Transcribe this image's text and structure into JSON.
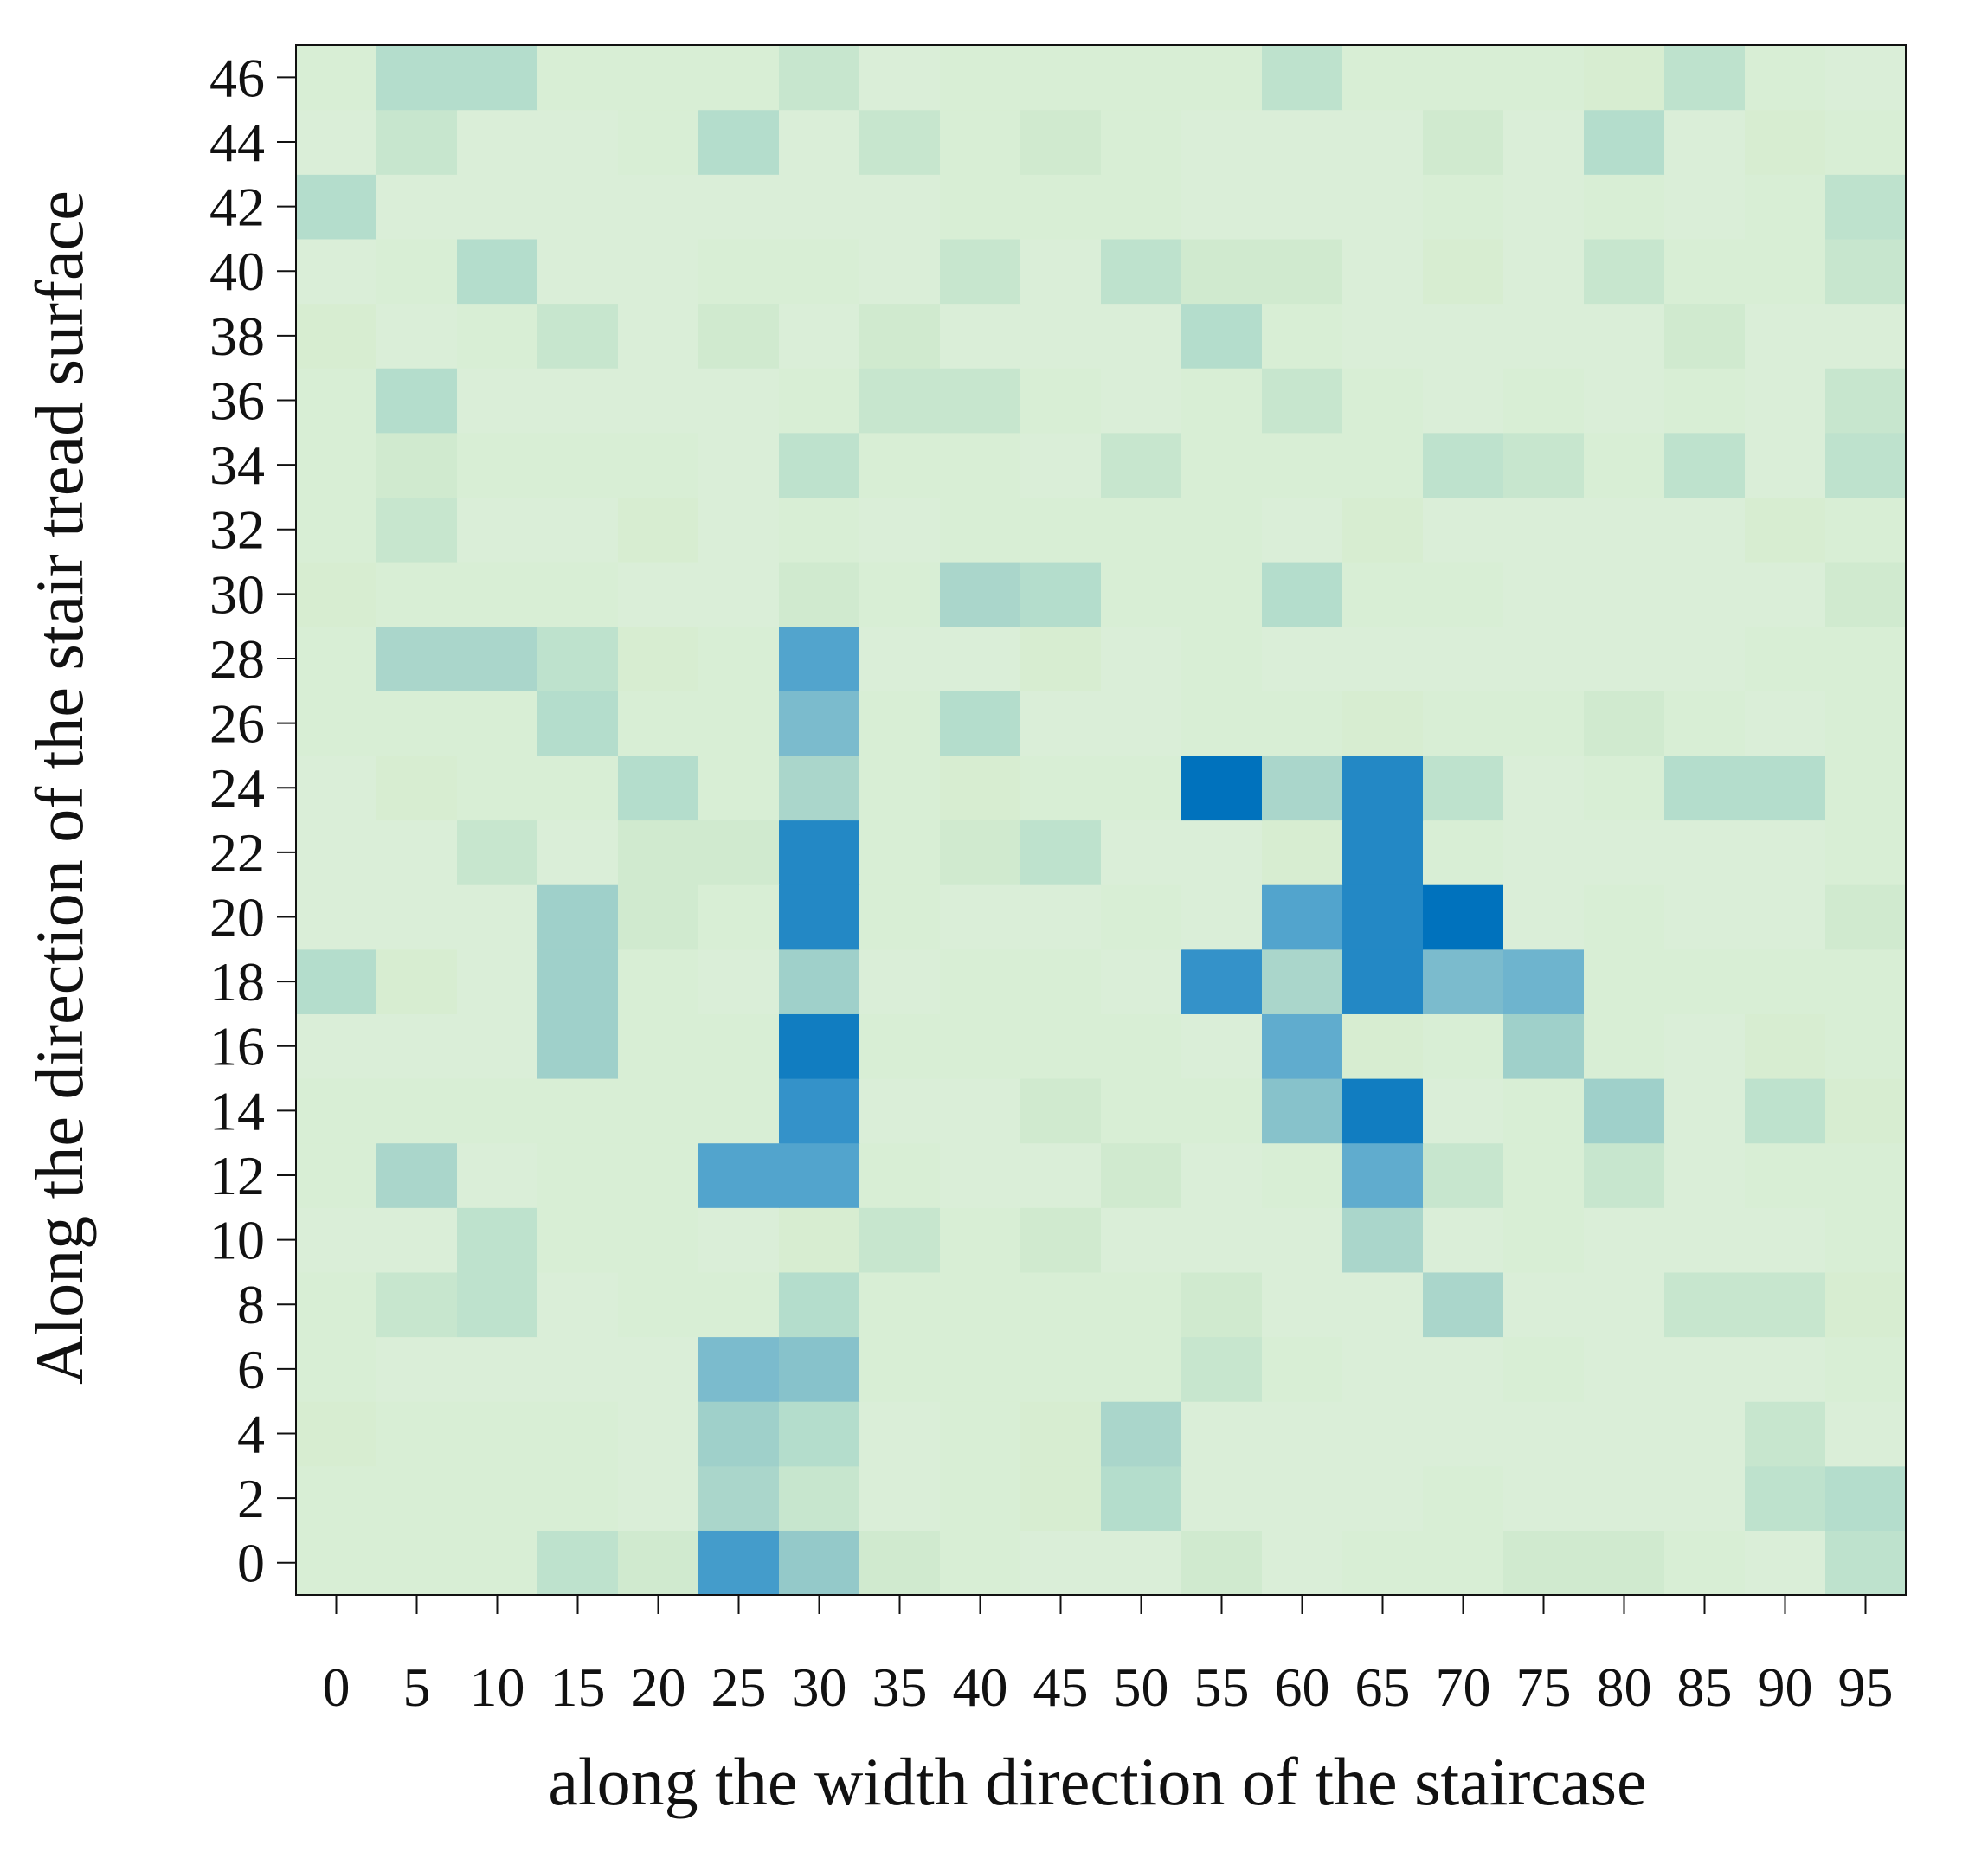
{
  "chart_data": {
    "type": "heatmap",
    "title": "",
    "xlabel": "along the width direction of the staircase",
    "ylabel": "Along the direction of the stair tread surface",
    "x": [
      0,
      5,
      10,
      15,
      20,
      25,
      30,
      35,
      40,
      45,
      50,
      55,
      60,
      65,
      70,
      75,
      80,
      85,
      90,
      95
    ],
    "y": [
      0,
      2,
      4,
      6,
      8,
      10,
      12,
      14,
      16,
      18,
      20,
      22,
      24,
      26,
      28,
      30,
      32,
      34,
      36,
      38,
      40,
      42,
      44,
      46
    ],
    "x_ticks": [
      "0",
      "5",
      "10",
      "15",
      "20",
      "25",
      "30",
      "35",
      "40",
      "45",
      "50",
      "55",
      "60",
      "65",
      "70",
      "75",
      "80",
      "85",
      "90",
      "95"
    ],
    "y_ticks": [
      "0",
      "2",
      "4",
      "6",
      "8",
      "10",
      "12",
      "14",
      "16",
      "18",
      "20",
      "22",
      "24",
      "26",
      "28",
      "30",
      "32",
      "34",
      "36",
      "38",
      "40",
      "42",
      "44",
      "46"
    ],
    "value_range": [
      0,
      1
    ],
    "colormap": [
      "#dcefdc",
      "#d6edd0",
      "#b8dfcc",
      "#94c9c9",
      "#6ab2cf",
      "#3a96ca",
      "#0072bd"
    ],
    "grid": false,
    "values": [
      [
        0.1,
        0.1,
        0.1,
        0.3,
        0.2,
        0.8,
        0.5,
        0.2,
        0.1,
        0.05,
        0.05,
        0.2,
        0.05,
        0.1,
        0.1,
        0.2,
        0.2,
        0.1,
        0.05,
        0.3
      ],
      [
        0.1,
        0.1,
        0.1,
        0.1,
        0.05,
        0.4,
        0.25,
        0.05,
        0.1,
        0.15,
        0.35,
        0.05,
        0.05,
        0.05,
        0.1,
        0.05,
        0.05,
        0.05,
        0.3,
        0.35
      ],
      [
        0.15,
        0.1,
        0.1,
        0.1,
        0.05,
        0.45,
        0.35,
        0.05,
        0.1,
        0.15,
        0.4,
        0.05,
        0.05,
        0.05,
        0.05,
        0.05,
        0.05,
        0.05,
        0.25,
        0.05
      ],
      [
        0.1,
        0.05,
        0.05,
        0.05,
        0.05,
        0.6,
        0.55,
        0.1,
        0.1,
        0.1,
        0.1,
        0.25,
        0.1,
        0.05,
        0.05,
        0.1,
        0.05,
        0.05,
        0.05,
        0.1
      ],
      [
        0.1,
        0.25,
        0.3,
        0.05,
        0.1,
        0.1,
        0.35,
        0.1,
        0.1,
        0.1,
        0.1,
        0.2,
        0.05,
        0.05,
        0.4,
        0.05,
        0.05,
        0.25,
        0.25,
        0.15
      ],
      [
        0.05,
        0.05,
        0.3,
        0.1,
        0.1,
        0.05,
        0.15,
        0.25,
        0.1,
        0.2,
        0.05,
        0.05,
        0.05,
        0.4,
        0.05,
        0.1,
        0.05,
        0.05,
        0.05,
        0.1
      ],
      [
        0.1,
        0.4,
        0.05,
        0.1,
        0.1,
        0.75,
        0.75,
        0.1,
        0.05,
        0.05,
        0.2,
        0.05,
        0.1,
        0.7,
        0.25,
        0.1,
        0.25,
        0.05,
        0.1,
        0.1
      ],
      [
        0.1,
        0.1,
        0.1,
        0.1,
        0.1,
        0.1,
        0.85,
        0.05,
        0.05,
        0.2,
        0.1,
        0.1,
        0.55,
        0.95,
        0.05,
        0.1,
        0.45,
        0.05,
        0.3,
        0.15
      ],
      [
        0.05,
        0.05,
        0.05,
        0.45,
        0.1,
        0.1,
        0.95,
        0.1,
        0.1,
        0.1,
        0.1,
        0.05,
        0.7,
        0.15,
        0.1,
        0.45,
        0.1,
        0.05,
        0.15,
        0.1
      ],
      [
        0.35,
        0.15,
        0.05,
        0.45,
        0.1,
        0.05,
        0.45,
        0.05,
        0.1,
        0.1,
        0.05,
        0.85,
        0.4,
        0.9,
        0.6,
        0.65,
        0.1,
        0.1,
        0.1,
        0.1
      ],
      [
        0.05,
        0.05,
        0.05,
        0.45,
        0.2,
        0.1,
        0.9,
        0.1,
        0.05,
        0.05,
        0.1,
        0.05,
        0.75,
        0.9,
        1.0,
        0.05,
        0.1,
        0.05,
        0.05,
        0.2
      ],
      [
        0.05,
        0.05,
        0.25,
        0.05,
        0.2,
        0.2,
        0.9,
        0.1,
        0.2,
        0.3,
        0.05,
        0.05,
        0.15,
        0.9,
        0.1,
        0.05,
        0.05,
        0.05,
        0.05,
        0.1
      ],
      [
        0.05,
        0.15,
        0.1,
        0.1,
        0.35,
        0.1,
        0.4,
        0.1,
        0.15,
        0.1,
        0.1,
        1.0,
        0.4,
        0.9,
        0.3,
        0.05,
        0.1,
        0.35,
        0.35,
        0.1
      ],
      [
        0.1,
        0.1,
        0.1,
        0.35,
        0.1,
        0.1,
        0.6,
        0.1,
        0.35,
        0.05,
        0.05,
        0.1,
        0.1,
        0.15,
        0.1,
        0.1,
        0.2,
        0.1,
        0.05,
        0.1
      ],
      [
        0.1,
        0.4,
        0.4,
        0.3,
        0.15,
        0.1,
        0.75,
        0.05,
        0.05,
        0.15,
        0.05,
        0.1,
        0.05,
        0.05,
        0.05,
        0.05,
        0.05,
        0.05,
        0.1,
        0.1
      ],
      [
        0.15,
        0.1,
        0.1,
        0.1,
        0.05,
        0.05,
        0.2,
        0.1,
        0.4,
        0.35,
        0.1,
        0.1,
        0.35,
        0.1,
        0.1,
        0.05,
        0.05,
        0.05,
        0.05,
        0.2
      ],
      [
        0.1,
        0.25,
        0.05,
        0.05,
        0.15,
        0.05,
        0.1,
        0.05,
        0.1,
        0.1,
        0.1,
        0.1,
        0.05,
        0.15,
        0.05,
        0.05,
        0.05,
        0.05,
        0.15,
        0.1
      ],
      [
        0.1,
        0.2,
        0.1,
        0.1,
        0.1,
        0.05,
        0.3,
        0.1,
        0.1,
        0.05,
        0.25,
        0.1,
        0.1,
        0.1,
        0.3,
        0.25,
        0.1,
        0.3,
        0.05,
        0.3
      ],
      [
        0.1,
        0.35,
        0.05,
        0.05,
        0.05,
        0.05,
        0.1,
        0.25,
        0.25,
        0.1,
        0.05,
        0.1,
        0.25,
        0.1,
        0.05,
        0.1,
        0.05,
        0.1,
        0.05,
        0.25
      ],
      [
        0.15,
        0.05,
        0.1,
        0.25,
        0.05,
        0.2,
        0.05,
        0.2,
        0.05,
        0.05,
        0.05,
        0.35,
        0.1,
        0.05,
        0.05,
        0.05,
        0.05,
        0.2,
        0.05,
        0.05
      ],
      [
        0.05,
        0.1,
        0.35,
        0.05,
        0.05,
        0.1,
        0.1,
        0.05,
        0.25,
        0.05,
        0.3,
        0.2,
        0.2,
        0.05,
        0.15,
        0.05,
        0.25,
        0.1,
        0.1,
        0.25
      ],
      [
        0.35,
        0.05,
        0.05,
        0.05,
        0.05,
        0.05,
        0.05,
        0.05,
        0.1,
        0.1,
        0.1,
        0.05,
        0.05,
        0.05,
        0.1,
        0.05,
        0.1,
        0.05,
        0.1,
        0.3
      ],
      [
        0.05,
        0.25,
        0.05,
        0.05,
        0.1,
        0.35,
        0.05,
        0.25,
        0.1,
        0.2,
        0.1,
        0.05,
        0.05,
        0.05,
        0.2,
        0.05,
        0.35,
        0.05,
        0.15,
        0.1
      ],
      [
        0.1,
        0.35,
        0.35,
        0.1,
        0.1,
        0.1,
        0.25,
        0.05,
        0.1,
        0.1,
        0.1,
        0.1,
        0.3,
        0.1,
        0.1,
        0.1,
        0.15,
        0.3,
        0.1,
        0.05
      ]
    ]
  }
}
